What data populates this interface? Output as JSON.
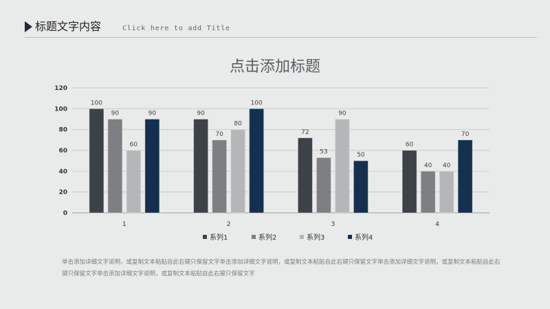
{
  "header": {
    "title_cn": "标题文字内容",
    "title_en": "Click here to add Title"
  },
  "chart_data": {
    "type": "bar",
    "title": "点击添加标题",
    "categories": [
      "1",
      "2",
      "3",
      "4"
    ],
    "series": [
      {
        "name": "系列1",
        "values": [
          100,
          90,
          72,
          60
        ],
        "color": "#3d4148"
      },
      {
        "name": "系列2",
        "values": [
          90,
          70,
          53,
          40
        ],
        "color": "#7d7f82"
      },
      {
        "name": "系列3",
        "values": [
          60,
          80,
          90,
          40
        ],
        "color": "#b4b6b8"
      },
      {
        "name": "系列4",
        "values": [
          90,
          100,
          50,
          70
        ],
        "color": "#14304e"
      }
    ],
    "ylim": [
      0,
      120
    ],
    "yticks": [
      "0",
      "20",
      "40",
      "60",
      "80",
      "100",
      "120"
    ],
    "grid": true,
    "legend": "bottom"
  },
  "description": "单击添加详细文字说明，或复制文本粘贴自此右键只保留文字单击添加详细文字说明，或复制文本粘贴自此右键只保留文字单击添加详细文字说明，或复制文本粘贴自此右键只保留文字单击添加详细文字说明，或复制文本粘贴自此右键只保留文字"
}
